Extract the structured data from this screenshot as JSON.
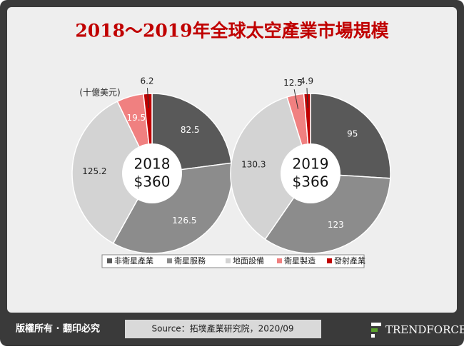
{
  "header": {
    "title": "2018～2019年全球太空產業市場規模"
  },
  "chart_data": [
    {
      "type": "pie",
      "unit_label": "(十億美元)",
      "center_text": [
        "2018",
        "$360"
      ],
      "categories": [
        "非衛星產業",
        "衛星服務",
        "地面設備",
        "衛星製造",
        "發射產業"
      ],
      "values": [
        82.5,
        126.5,
        125.2,
        19.5,
        6.2
      ],
      "colors": [
        "#595959",
        "#8c8c8c",
        "#d3d3d3",
        "#f08080",
        "#c00000"
      ]
    },
    {
      "type": "pie",
      "center_text": [
        "2019",
        "$366"
      ],
      "categories": [
        "非衛星產業",
        "衛星服務",
        "地面設備",
        "衛星製造",
        "發射產業"
      ],
      "values": [
        95,
        123,
        130.3,
        12.5,
        4.9
      ],
      "colors": [
        "#595959",
        "#8c8c8c",
        "#d3d3d3",
        "#f08080",
        "#c00000"
      ]
    }
  ],
  "footer": {
    "copyright": "版權所有 · 翻印必究",
    "source": "Source：拓墣產業研究院，2020/09",
    "brand": "TRENDFORCE"
  }
}
